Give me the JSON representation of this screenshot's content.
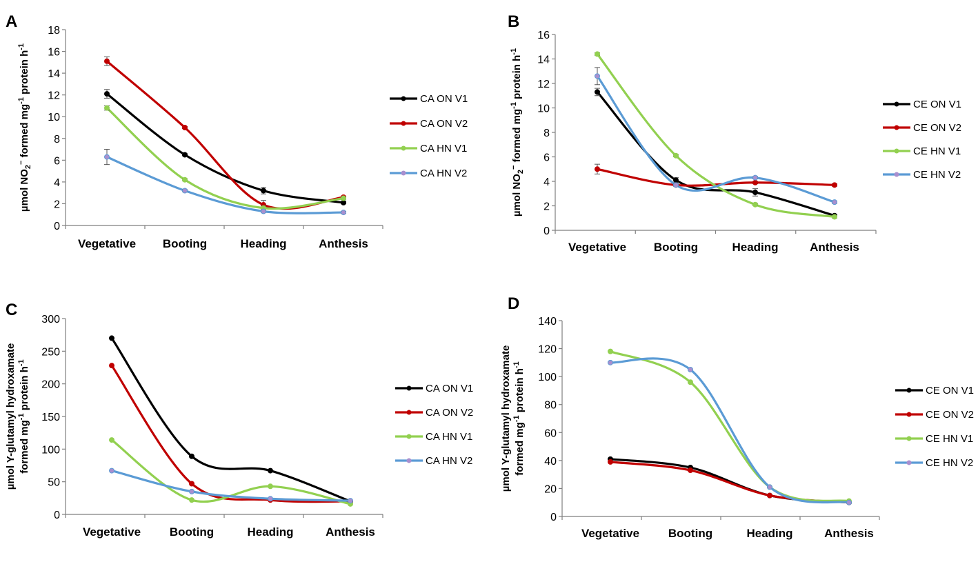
{
  "chart_data": [
    {
      "panel": "A",
      "type": "line",
      "ylabel": {
        "pre": "µmol NO",
        "sub1": "2",
        "sup1": "−",
        "mid": " formed mg",
        "sup2": "-1",
        "mid2": " protein h",
        "sup3": "-1"
      },
      "ylim": [
        0,
        18
      ],
      "yticks": [
        0,
        2,
        4,
        6,
        8,
        10,
        12,
        14,
        16,
        18
      ],
      "categories": [
        "Vegetative",
        "Booting",
        "Heading",
        "Anthesis"
      ],
      "series": [
        {
          "name": "CA ON V1",
          "color": "#000000",
          "values": [
            12.1,
            6.5,
            3.2,
            2.1
          ],
          "errors": [
            0.4,
            0.1,
            0.3,
            0.1
          ]
        },
        {
          "name": "CA ON V2",
          "color": "#c00000",
          "values": [
            15.1,
            9.0,
            1.9,
            2.6
          ],
          "errors": [
            0.4,
            0.1,
            0.4,
            0.1
          ]
        },
        {
          "name": "CA HN V1",
          "color": "#92d050",
          "values": [
            10.8,
            4.2,
            1.6,
            2.5
          ],
          "errors": [
            0.2,
            0.1,
            0.2,
            0.1
          ]
        },
        {
          "name": "CA HN V2",
          "color": "#5b9bd5",
          "values": [
            6.3,
            3.2,
            1.3,
            1.2
          ],
          "errors": [
            0.7,
            0.1,
            0.1,
            0.1
          ]
        }
      ]
    },
    {
      "panel": "B",
      "type": "line",
      "ylabel": {
        "pre": "µmol NO",
        "sub1": "2",
        "sup1": "−",
        "mid": " formed mg",
        "sup2": "-1",
        "mid2": " protein h",
        "sup3": "-1"
      },
      "ylim": [
        0,
        16
      ],
      "yticks": [
        0,
        2,
        4,
        6,
        8,
        10,
        12,
        14,
        16
      ],
      "categories": [
        "Vegetative",
        "Booting",
        "Heading",
        "Anthesis"
      ],
      "series": [
        {
          "name": "CE ON V1",
          "color": "#000000",
          "values": [
            11.3,
            4.1,
            3.1,
            1.2
          ],
          "errors": [
            0.3,
            0.2,
            0.3,
            0.1
          ]
        },
        {
          "name": "CE ON V2",
          "color": "#c00000",
          "values": [
            5.0,
            3.7,
            3.9,
            3.7
          ],
          "errors": [
            0.4,
            0.1,
            0.1,
            0.1
          ]
        },
        {
          "name": "CE HN V1",
          "color": "#92d050",
          "values": [
            14.4,
            6.1,
            2.1,
            1.1
          ],
          "errors": [
            0.1,
            0.1,
            0.1,
            0.1
          ]
        },
        {
          "name": "CE HN V2",
          "color": "#5b9bd5",
          "values": [
            12.6,
            3.7,
            4.3,
            2.3
          ],
          "errors": [
            0.7,
            0.1,
            0.1,
            0.1
          ]
        }
      ]
    },
    {
      "panel": "C",
      "type": "line",
      "ylabel": {
        "line1": "µmol Y-glutamyl hydroxamate",
        "pre": "formed mg",
        "sup1": "-1",
        "mid": " protein h",
        "sup2": "-1"
      },
      "ylim": [
        0,
        300
      ],
      "yticks": [
        0,
        50,
        100,
        150,
        200,
        250,
        300
      ],
      "categories": [
        "Vegetative",
        "Booting",
        "Heading",
        "Anthesis"
      ],
      "series": [
        {
          "name": "CA ON V1",
          "color": "#000000",
          "values": [
            270,
            89,
            67,
            20
          ]
        },
        {
          "name": "CA ON V2",
          "color": "#c00000",
          "values": [
            228,
            47,
            22,
            20
          ]
        },
        {
          "name": "CA HN V1",
          "color": "#92d050",
          "values": [
            114,
            22,
            43,
            16
          ]
        },
        {
          "name": "CA HN V2",
          "color": "#5b9bd5",
          "values": [
            67,
            35,
            24,
            21
          ]
        }
      ]
    },
    {
      "panel": "D",
      "type": "line",
      "ylabel": {
        "line1": "µmol Y-glutamyl hydroxamate",
        "pre": "formed mg",
        "sup1": "-1",
        "mid": " protein h",
        "sup2": "-1"
      },
      "ylim": [
        0,
        140
      ],
      "yticks": [
        0,
        20,
        40,
        60,
        80,
        100,
        120,
        140
      ],
      "categories": [
        "Vegetative",
        "Booting",
        "Heading",
        "Anthesis"
      ],
      "series": [
        {
          "name": "CE ON V1",
          "color": "#000000",
          "values": [
            41,
            35,
            15,
            10
          ]
        },
        {
          "name": "CE ON V2",
          "color": "#c00000",
          "values": [
            39,
            33,
            15,
            10
          ]
        },
        {
          "name": "CE HN V1",
          "color": "#92d050",
          "values": [
            118,
            96,
            21,
            11
          ]
        },
        {
          "name": "CE HN V2",
          "color": "#5b9bd5",
          "values": [
            110,
            105,
            21,
            10
          ]
        }
      ]
    }
  ]
}
